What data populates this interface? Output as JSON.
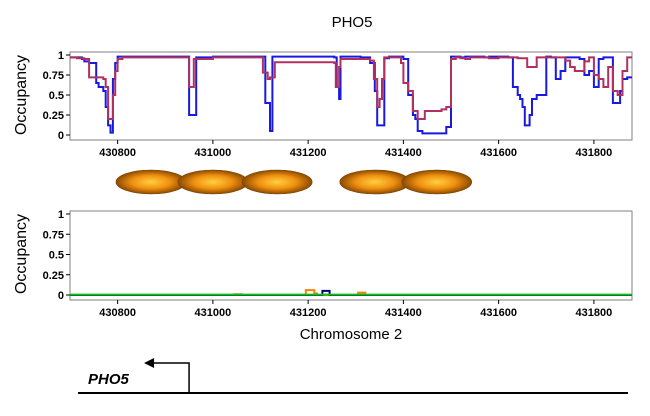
{
  "title": "PHO5",
  "chart_data": [
    {
      "type": "line",
      "name": "top-occupancy",
      "ylabel": "Occupancy",
      "xlim": [
        430700,
        431880
      ],
      "ylim": [
        0,
        1
      ],
      "xticks": [
        430800,
        431000,
        431200,
        431400,
        431600,
        431800
      ],
      "yticks": [
        0,
        0.25,
        0.5,
        0.75,
        1
      ],
      "ytick_labels": [
        "0",
        "0.25",
        "0.5",
        "0.75",
        "1"
      ],
      "series": [
        {
          "name": "blue-series",
          "color": "#1a1adf",
          "x": [
            430700,
            430725,
            430730,
            430740,
            430755,
            430760,
            430770,
            430775,
            430780,
            430785,
            430790,
            430795,
            430800,
            430825,
            430945,
            430950,
            430960,
            430965,
            431000,
            431105,
            431110,
            431115,
            431120,
            431125,
            431250,
            431255,
            431260,
            431265,
            431268,
            431280,
            431290,
            431300,
            431310,
            431320,
            431330,
            431340,
            431345,
            431350,
            431360,
            431370,
            431372,
            431375,
            431380,
            431390,
            431400,
            431410,
            431420,
            431425,
            431430,
            431440,
            431450,
            431470,
            431480,
            431490,
            431500,
            431510,
            431520,
            431530,
            431540,
            431550,
            431560,
            431570,
            431580,
            431590,
            431600,
            431610,
            431620,
            431630,
            431640,
            431645,
            431650,
            431655,
            431660,
            431665,
            431670,
            431675,
            431680,
            431690,
            431700,
            431710,
            431720,
            431730,
            431740,
            431750,
            431760,
            431770,
            431780,
            431790,
            431800,
            431810,
            431820,
            431830,
            431840,
            431850,
            431855,
            431860,
            431870,
            431880
          ],
          "y": [
            0.97,
            0.95,
            0.92,
            0.9,
            0.65,
            0.6,
            0.55,
            0.35,
            0.12,
            0.03,
            0.7,
            0.9,
            0.98,
            0.98,
            0.98,
            0.25,
            0.25,
            0.97,
            0.98,
            0.98,
            0.4,
            0.4,
            0.05,
            0.98,
            0.98,
            0.97,
            0.6,
            0.45,
            0.98,
            0.98,
            0.98,
            0.98,
            0.97,
            0.97,
            0.9,
            0.55,
            0.12,
            0.12,
            0.96,
            0.98,
            0.98,
            0.98,
            0.98,
            0.98,
            0.95,
            0.5,
            0.25,
            0.2,
            0.05,
            0.02,
            0.02,
            0.02,
            0.02,
            0.1,
            0.98,
            0.98,
            0.97,
            0.98,
            0.98,
            0.98,
            0.98,
            0.97,
            0.98,
            0.98,
            0.98,
            0.98,
            0.97,
            0.6,
            0.5,
            0.45,
            0.35,
            0.12,
            0.12,
            0.25,
            0.45,
            0.45,
            0.5,
            0.5,
            0.98,
            0.97,
            0.7,
            0.8,
            0.97,
            0.97,
            0.97,
            0.95,
            0.75,
            0.8,
            0.6,
            0.95,
            0.97,
            0.97,
            0.4,
            0.4,
            0.55,
            0.7,
            0.72,
            0.72
          ]
        },
        {
          "name": "crimson-series",
          "color": "#b03060",
          "x": [
            430700,
            430715,
            430730,
            430740,
            430755,
            430760,
            430770,
            430775,
            430780,
            430790,
            430795,
            430800,
            430810,
            430940,
            430945,
            430950,
            430955,
            430960,
            431000,
            431095,
            431105,
            431115,
            431120,
            431125,
            431130,
            431250,
            431255,
            431258,
            431262,
            431265,
            431268,
            431275,
            431300,
            431330,
            431338,
            431345,
            431350,
            431355,
            431360,
            431390,
            431395,
            431400,
            431410,
            431420,
            431430,
            431440,
            431445,
            431460,
            431470,
            431480,
            431490,
            431500,
            431510,
            431520,
            431530,
            431540,
            431560,
            431580,
            431600,
            431620,
            431640,
            431660,
            431680,
            431700,
            431720,
            431730,
            431740,
            431750,
            431760,
            431770,
            431780,
            431790,
            431800,
            431810,
            431820,
            431830,
            431840,
            431850,
            431860,
            431870,
            431880
          ],
          "y": [
            0.97,
            0.96,
            0.95,
            0.72,
            0.72,
            0.72,
            0.7,
            0.6,
            0.2,
            0.5,
            0.8,
            0.95,
            0.97,
            0.97,
            0.97,
            0.6,
            0.6,
            0.95,
            0.97,
            0.97,
            0.78,
            0.7,
            0.72,
            0.72,
            0.91,
            0.91,
            0.9,
            0.6,
            0.6,
            0.85,
            0.95,
            0.95,
            0.95,
            0.93,
            0.7,
            0.35,
            0.45,
            0.7,
            0.97,
            0.97,
            0.9,
            0.65,
            0.55,
            0.3,
            0.2,
            0.2,
            0.3,
            0.3,
            0.3,
            0.32,
            0.35,
            0.95,
            0.97,
            0.96,
            0.95,
            0.97,
            0.97,
            0.96,
            0.97,
            0.97,
            0.96,
            0.85,
            0.97,
            0.97,
            0.97,
            0.97,
            0.93,
            0.85,
            0.8,
            0.8,
            0.92,
            0.97,
            0.75,
            0.7,
            0.6,
            0.85,
            0.55,
            0.5,
            0.8,
            0.97,
            0.97
          ]
        }
      ]
    },
    {
      "type": "line",
      "name": "bottom-occupancy",
      "ylabel": "Occupancy",
      "xlabel": "Chromosome 2",
      "xlim": [
        430700,
        431880
      ],
      "ylim": [
        0,
        1
      ],
      "xticks": [
        430800,
        431000,
        431200,
        431400,
        431600,
        431800
      ],
      "yticks": [
        0,
        0.25,
        0.5,
        0.75,
        1
      ],
      "ytick_labels": [
        "0",
        "0.25",
        "0.5",
        "0.75",
        "1"
      ],
      "series": [
        {
          "name": "orange-series",
          "color": "#ff8000",
          "x": [
            430700,
            431040,
            431045,
            431055,
            431060,
            431190,
            431195,
            431198,
            431210,
            431213,
            431218,
            431300,
            431305,
            431315,
            431320,
            431880
          ],
          "y": [
            0,
            0,
            0.01,
            0.01,
            0,
            0,
            0.06,
            0.06,
            0.06,
            0.02,
            0,
            0,
            0.03,
            0.03,
            0,
            0
          ]
        },
        {
          "name": "navy-series",
          "color": "#000080",
          "x": [
            430700,
            431225,
            431230,
            431240,
            431245,
            431880
          ],
          "y": [
            0,
            0,
            0.05,
            0.05,
            0,
            0
          ]
        },
        {
          "name": "green-series",
          "color": "#10c010",
          "x": [
            430700,
            431880
          ],
          "y": [
            0.005,
            0.005
          ]
        }
      ]
    }
  ],
  "nucleosomes": {
    "color": "#e88c10",
    "centers": [
      430870,
      431000,
      431135,
      431340,
      431470
    ]
  },
  "gene": {
    "name": "PHO5",
    "start": 430950,
    "direction": "left"
  }
}
